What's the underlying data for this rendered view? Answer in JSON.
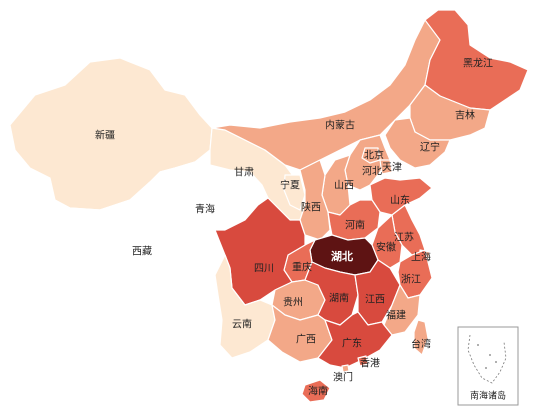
{
  "colors": {
    "level1": "#fde8d2",
    "level2": "#f3a888",
    "level3": "#e96d57",
    "level4": "#d84a3e",
    "level5": "#5e1313",
    "none": "#ffffff"
  },
  "provinces": {
    "xinjiang": "新疆",
    "xizang": "西藏",
    "qinghai": "青海",
    "gansu": "甘肃",
    "neimenggu": "内蒙古",
    "heilongjiang": "黑龙江",
    "jilin": "吉林",
    "liaoning": "辽宁",
    "beijing": "北京",
    "tianjin": "天津",
    "hebei": "河北",
    "shanxi": "山西",
    "shandong": "山东",
    "ningxia": "宁夏",
    "shaanxi": "陕西",
    "henan": "河南",
    "jiangsu": "江苏",
    "anhui": "安徽",
    "shanghai": "上海",
    "hubei": "湖北",
    "sichuan": "四川",
    "chongqing": "重庆",
    "zhejiang": "浙江",
    "guizhou": "贵州",
    "hunan": "湖南",
    "jiangxi": "江西",
    "fujian": "福建",
    "yunnan": "云南",
    "guangxi": "广西",
    "guangdong": "广东",
    "taiwan": "台湾",
    "xianggang": "香港",
    "aomen": "澳门",
    "hainan": "海南"
  },
  "inset": {
    "label": "南海诸岛"
  }
}
